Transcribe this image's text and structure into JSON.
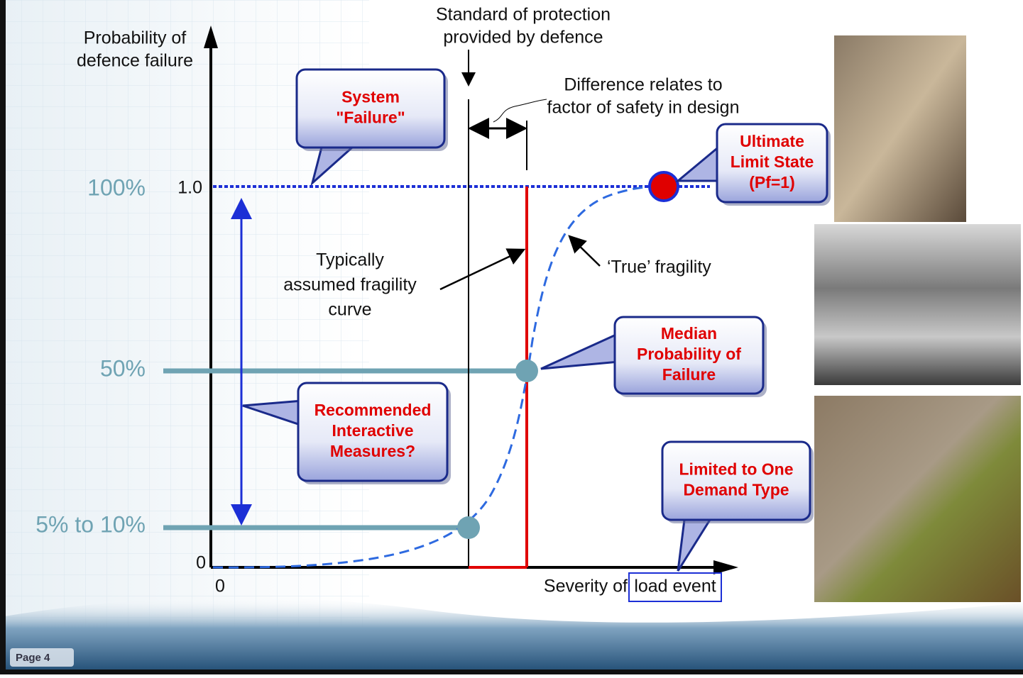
{
  "header": {
    "top_note": [
      "Standard of protection",
      "provided by defence"
    ]
  },
  "axes": {
    "y_title": [
      "Probability of",
      "defence failure"
    ],
    "y_one": "1.0",
    "y_zero": "0",
    "x_zero": "0",
    "x_title_prefix": "Severity of",
    "x_title_boxed": "load event"
  },
  "levels": [
    "100%",
    "50%",
    "5% to 10%"
  ],
  "notes": {
    "difference": [
      "Difference relates to",
      "factor of safety in design"
    ],
    "assumed": [
      "Typically",
      "assumed fragility",
      "curve"
    ],
    "true_fragility": "‘True’ fragility"
  },
  "callouts": [
    {
      "lines": [
        "System",
        "\"Failure\""
      ]
    },
    {
      "lines": [
        "Ultimate",
        "Limit State",
        "(Pf=1)"
      ]
    },
    {
      "lines": [
        "Median",
        "Probability of",
        "Failure"
      ]
    },
    {
      "lines": [
        "Recommended",
        "Interactive",
        "Measures?"
      ]
    },
    {
      "lines": [
        "Limited to One",
        "Demand Type"
      ]
    }
  ],
  "footer": {
    "page": "Page 4"
  }
}
